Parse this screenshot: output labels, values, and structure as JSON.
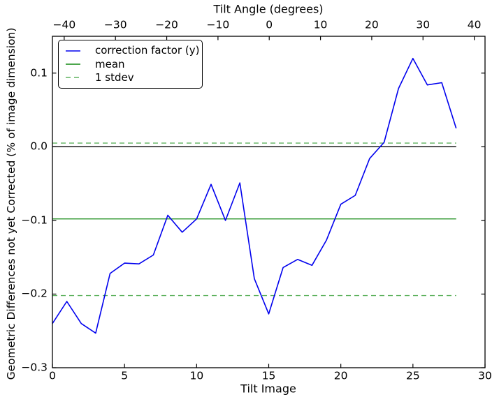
{
  "chart_data": {
    "type": "line",
    "top_axis": {
      "label": "Tilt Angle (degrees)",
      "tick_values": [
        -40,
        -30,
        -20,
        -10,
        0,
        10,
        20,
        30,
        40
      ],
      "tick_labels": [
        "−40",
        "−30",
        "−20",
        "−10",
        "0",
        "10",
        "20",
        "30",
        "40"
      ],
      "range": [
        -42.3,
        42.1
      ]
    },
    "xlabel": "Tilt Image",
    "ylabel": "Geometric Differences not yet Corrected (% of image dimension)",
    "xlim": [
      0,
      30
    ],
    "ylim": [
      -0.3,
      0.15
    ],
    "grid": false,
    "x_ticks": {
      "values": [
        0,
        5,
        10,
        15,
        20,
        25,
        30
      ],
      "labels": [
        "0",
        "5",
        "10",
        "15",
        "20",
        "25",
        "30"
      ]
    },
    "y_ticks": {
      "values": [
        0.1,
        0.0,
        -0.1,
        -0.2,
        -0.3
      ],
      "labels": [
        "0.1",
        "0.0",
        "−0.1",
        "−0.2",
        "−0.3"
      ]
    },
    "series": [
      {
        "name": "correction factor (y)",
        "color": "#0000ee",
        "x": [
          0,
          1,
          2,
          3,
          4,
          5,
          6,
          7,
          8,
          9,
          10,
          11,
          12,
          13,
          14,
          15,
          16,
          17,
          18,
          19,
          20,
          21,
          22,
          23,
          24,
          25,
          26,
          27,
          28
        ],
        "values": [
          -0.24,
          -0.21,
          -0.24,
          -0.253,
          -0.172,
          -0.158,
          -0.159,
          -0.147,
          -0.093,
          -0.116,
          -0.098,
          -0.051,
          -0.1,
          -0.049,
          -0.179,
          -0.227,
          -0.164,
          -0.153,
          -0.161,
          -0.127,
          -0.078,
          -0.066,
          -0.016,
          0.006,
          0.079,
          0.12,
          0.084,
          0.087,
          0.025
        ]
      }
    ],
    "reference_lines": [
      {
        "name": "zero-line",
        "value": 0.0,
        "color": "#000000",
        "style": "solid"
      },
      {
        "name": "mean-line",
        "value": -0.098,
        "color": "#128a12",
        "style": "solid"
      },
      {
        "name": "plus-1-stdev-line",
        "value": 0.005,
        "color": "#5fb25f",
        "style": "dashed"
      },
      {
        "name": "minus-1-stdev-line",
        "value": -0.202,
        "color": "#5fb25f",
        "style": "dashed"
      }
    ],
    "legend": {
      "position": "upper left",
      "items": [
        {
          "label": "correction factor (y)",
          "color": "#0000ee",
          "style": "solid"
        },
        {
          "label": "mean",
          "color": "#128a12",
          "style": "solid"
        },
        {
          "label": "1 stdev",
          "color": "#5fb25f",
          "style": "dashed"
        }
      ]
    }
  }
}
